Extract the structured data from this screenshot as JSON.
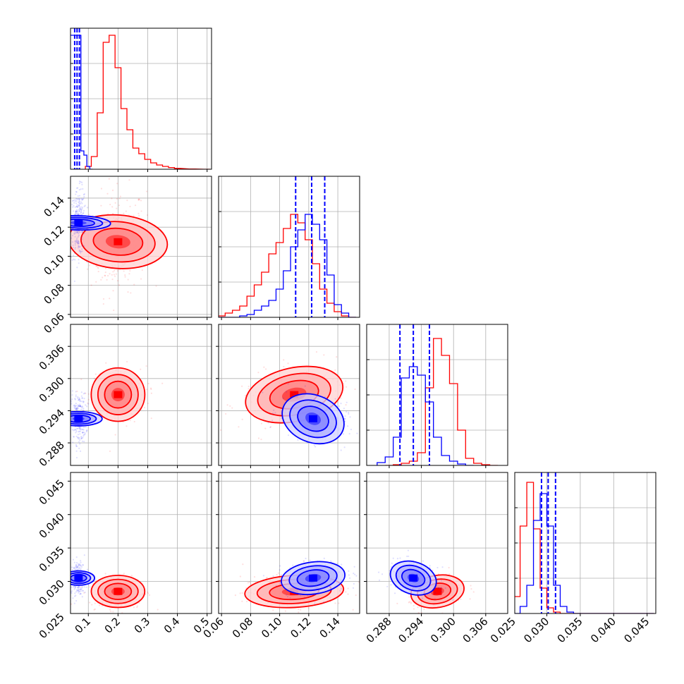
{
  "chart_data": {
    "type": "corner-plot",
    "parameters": [
      {
        "ticks": [
          0.1,
          0.2,
          0.3,
          0.4,
          0.5
        ],
        "tick_labels": [
          "0.1",
          "0.2",
          "0.3",
          "0.4",
          "0.5"
        ],
        "range": [
          0.04,
          0.515
        ]
      },
      {
        "ticks": [
          0.06,
          0.08,
          0.1,
          0.12,
          0.14
        ],
        "tick_labels": [
          "0.06",
          "0.08",
          "0.10",
          "0.12",
          "0.14"
        ],
        "range": [
          0.058,
          0.155
        ]
      },
      {
        "ticks": [
          0.288,
          0.294,
          0.3,
          0.306
        ],
        "tick_labels": [
          "0.288",
          "0.294",
          "0.300",
          "0.306"
        ],
        "range": [
          0.2838,
          0.3101
        ]
      },
      {
        "ticks": [
          0.025,
          0.03,
          0.035,
          0.04,
          0.045
        ],
        "tick_labels": [
          "0.025",
          "0.030",
          "0.035",
          "0.040",
          "0.045"
        ],
        "range": [
          0.0252,
          0.0463
        ]
      }
    ],
    "series": [
      {
        "color": "#ff0000",
        "means": [
          0.2,
          0.11,
          0.297,
          0.0285
        ],
        "sds": [
          0.045,
          0.017,
          0.0025,
          0.0012
        ],
        "correlations": {
          "1-0": 0.1,
          "2-0": 0.0,
          "2-1": 0.3,
          "3-0": 0.0,
          "3-1": 0.15,
          "3-2": 0.2
        },
        "quantiles": null,
        "hist": [
          {
            "x": [
              0.1,
              0.12,
              0.14,
              0.16,
              0.18,
              0.2,
              0.22,
              0.24,
              0.26,
              0.28,
              0.3,
              0.32,
              0.34,
              0.36,
              0.38,
              0.4,
              0.45,
              0.5
            ],
            "y": [
              0.02,
              0.09,
              0.4,
              0.9,
              0.95,
              0.72,
              0.43,
              0.28,
              0.15,
              0.11,
              0.07,
              0.045,
              0.03,
              0.02,
              0.012,
              0.006,
              0.002,
              0.0
            ]
          },
          {
            "x": [
              0.06,
              0.065,
              0.07,
              0.075,
              0.08,
              0.085,
              0.09,
              0.095,
              0.1,
              0.105,
              0.11,
              0.115,
              0.12,
              0.125,
              0.13,
              0.135,
              0.14,
              0.145,
              0.15
            ],
            "y": [
              0.01,
              0.03,
              0.05,
              0.08,
              0.15,
              0.23,
              0.32,
              0.45,
              0.53,
              0.63,
              0.73,
              0.67,
              0.55,
              0.38,
              0.2,
              0.1,
              0.04,
              0.01,
              0.0
            ]
          },
          {
            "x": [
              0.288,
              0.2895,
              0.291,
              0.2925,
              0.294,
              0.2955,
              0.297,
              0.2985,
              0.3,
              0.3015,
              0.303,
              0.3045,
              0.306,
              0.3075
            ],
            "y": [
              0.0,
              0.005,
              0.015,
              0.03,
              0.09,
              0.55,
              0.9,
              0.78,
              0.58,
              0.25,
              0.05,
              0.015,
              0.005,
              0.0
            ]
          },
          {
            "x": [
              0.0255,
              0.0265,
              0.0275,
              0.0285,
              0.0295,
              0.0305,
              0.0315,
              0.0325,
              0.0335,
              0.0345,
              0.0355,
              0.0365,
              0.0375,
              0.0385,
              0.0395,
              0.0405,
              0.0415,
              0.0425,
              0.0435,
              0.0445,
              0.0455
            ],
            "y": [
              0.12,
              0.62,
              0.93,
              0.6,
              0.18,
              0.04,
              0.01,
              0.0,
              0.0,
              0.0,
              0.0,
              0.0,
              0.0,
              0.0,
              0.0,
              0.0,
              0.0,
              0.0,
              0.0,
              0.0,
              0.0
            ]
          }
        ]
      },
      {
        "color": "#0000ff",
        "means": [
          0.067,
          0.123,
          0.2925,
          0.0305
        ],
        "sds": [
          0.012,
          0.011,
          0.0022,
          0.0012
        ],
        "correlations": {
          "1-0": 0.1,
          "2-0": 0.0,
          "2-1": -0.3,
          "3-0": 0.0,
          "3-1": 0.2,
          "3-2": -0.3
        },
        "quantiles": [
          [
            0.054,
            0.062,
            0.07
          ],
          [
            0.111,
            0.122,
            0.131
          ],
          [
            0.29,
            0.2925,
            0.2955
          ],
          [
            0.0292,
            0.0302,
            0.0313
          ]
        ],
        "hist": [
          {
            "x": [
              0.04,
              0.05,
              0.06,
              0.07,
              0.08,
              0.09,
              0.1,
              0.11
            ],
            "y": [
              0.95,
              0.95,
              0.95,
              0.95,
              0.13,
              0.1,
              0.02,
              0.0
            ]
          },
          {
            "x": [
              0.06,
              0.065,
              0.07,
              0.075,
              0.08,
              0.085,
              0.09,
              0.095,
              0.1,
              0.105,
              0.11,
              0.115,
              0.12,
              0.125,
              0.13,
              0.135,
              0.14,
              0.145,
              0.15
            ],
            "y": [
              0.0,
              0.0,
              0.0,
              0.01,
              0.02,
              0.05,
              0.08,
              0.12,
              0.2,
              0.33,
              0.5,
              0.62,
              0.73,
              0.66,
              0.55,
              0.3,
              0.09,
              0.03,
              0.0
            ]
          },
          {
            "x": [
              0.2865,
              0.288,
              0.2895,
              0.291,
              0.2925,
              0.294,
              0.2955,
              0.297,
              0.2985,
              0.3,
              0.3015,
              0.303
            ],
            "y": [
              0.02,
              0.06,
              0.2,
              0.62,
              0.7,
              0.64,
              0.45,
              0.2,
              0.07,
              0.03,
              0.01,
              0.0
            ]
          },
          {
            "x": [
              0.0255,
              0.0265,
              0.0275,
              0.0285,
              0.0295,
              0.0305,
              0.0315,
              0.0325,
              0.0335,
              0.0345,
              0.0355,
              0.0365,
              0.0375,
              0.0385,
              0.0395,
              0.0405,
              0.0415,
              0.0425,
              0.0435,
              0.0445,
              0.0455
            ],
            "y": [
              0.0,
              0.05,
              0.2,
              0.66,
              0.85,
              0.62,
              0.2,
              0.05,
              0.01,
              0.0,
              0.0,
              0.0,
              0.0,
              0.0,
              0.0,
              0.0,
              0.0,
              0.0,
              0.0,
              0.0,
              0.0
            ]
          }
        ]
      }
    ],
    "grid": true
  }
}
